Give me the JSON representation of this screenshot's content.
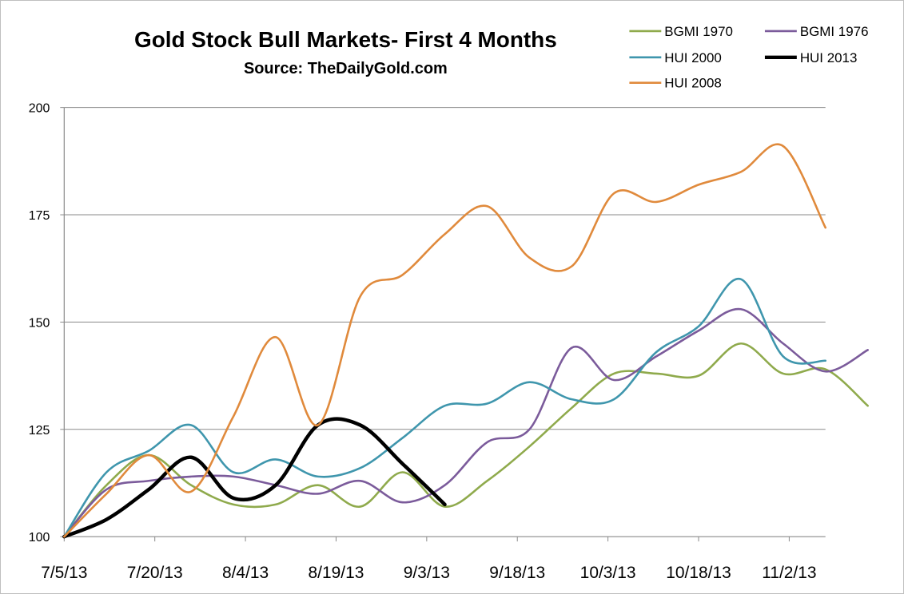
{
  "chart_data": {
    "type": "line",
    "title": "Gold Stock Bull Markets- First 4 Months",
    "subtitle": "Source: TheDailyGold.com",
    "xlabel": "",
    "ylabel": "",
    "ylim": [
      100,
      200
    ],
    "yticks": [
      100,
      125,
      150,
      175,
      200
    ],
    "xticks": [
      "7/5/13",
      "7/20/13",
      "8/4/13",
      "8/19/13",
      "9/3/13",
      "9/18/13",
      "10/3/13",
      "10/18/13",
      "11/2/13"
    ],
    "x_range": [
      "7/5/13",
      "11/8/13"
    ],
    "grid": "horizontal",
    "legend_position": "top-right",
    "series": [
      {
        "name": "BGMI 1970",
        "color": "#8faa4c",
        "points": [
          [
            "7/5/13",
            100
          ],
          [
            "7/12/13",
            112
          ],
          [
            "7/19/13",
            119
          ],
          [
            "7/26/13",
            112
          ],
          [
            "8/2/13",
            107.5
          ],
          [
            "8/9/13",
            107.5
          ],
          [
            "8/16/13",
            112
          ],
          [
            "8/23/13",
            107
          ],
          [
            "8/30/13",
            115
          ],
          [
            "9/6/13",
            107
          ],
          [
            "9/13/13",
            113
          ],
          [
            "9/20/13",
            121
          ],
          [
            "9/27/13",
            130
          ],
          [
            "10/4/13",
            138
          ],
          [
            "10/11/13",
            138
          ],
          [
            "10/18/13",
            137.5
          ],
          [
            "10/25/13",
            145
          ],
          [
            "11/1/13",
            138
          ],
          [
            "11/8/13",
            139
          ],
          [
            "11/15/13",
            130.5
          ]
        ]
      },
      {
        "name": "BGMI 1976",
        "color": "#7b5b9b",
        "points": [
          [
            "7/5/13",
            100
          ],
          [
            "7/12/13",
            111
          ],
          [
            "7/19/13",
            113
          ],
          [
            "7/26/13",
            114
          ],
          [
            "8/2/13",
            114
          ],
          [
            "8/9/13",
            112
          ],
          [
            "8/16/13",
            110
          ],
          [
            "8/23/13",
            113
          ],
          [
            "8/30/13",
            108
          ],
          [
            "9/6/13",
            112
          ],
          [
            "9/13/13",
            122
          ],
          [
            "9/20/13",
            125
          ],
          [
            "9/27/13",
            144
          ],
          [
            "10/4/13",
            136.5
          ],
          [
            "10/11/13",
            142
          ],
          [
            "10/18/13",
            148
          ],
          [
            "10/25/13",
            153
          ],
          [
            "11/1/13",
            145
          ],
          [
            "11/8/13",
            138.5
          ],
          [
            "11/15/13",
            143.5
          ]
        ]
      },
      {
        "name": "HUI 2000",
        "color": "#3f96ad",
        "points": [
          [
            "7/5/13",
            100
          ],
          [
            "7/12/13",
            115
          ],
          [
            "7/19/13",
            120
          ],
          [
            "7/26/13",
            126
          ],
          [
            "8/2/13",
            115
          ],
          [
            "8/9/13",
            118
          ],
          [
            "8/16/13",
            114
          ],
          [
            "8/23/13",
            116
          ],
          [
            "8/30/13",
            123
          ],
          [
            "9/6/13",
            130.5
          ],
          [
            "9/13/13",
            131
          ],
          [
            "9/20/13",
            136
          ],
          [
            "9/27/13",
            132
          ],
          [
            "10/4/13",
            132
          ],
          [
            "10/11/13",
            143
          ],
          [
            "10/18/13",
            149
          ],
          [
            "10/25/13",
            160
          ],
          [
            "11/1/13",
            142
          ],
          [
            "11/8/13",
            141
          ]
        ]
      },
      {
        "name": "HUI 2013",
        "color": "#000000",
        "points": [
          [
            "7/5/13",
            100
          ],
          [
            "7/12/13",
            104
          ],
          [
            "7/19/13",
            111
          ],
          [
            "7/26/13",
            118.5
          ],
          [
            "8/2/13",
            109
          ],
          [
            "8/9/13",
            112
          ],
          [
            "8/16/13",
            126
          ],
          [
            "8/23/13",
            126
          ],
          [
            "8/30/13",
            117
          ],
          [
            "9/6/13",
            107.5
          ]
        ]
      },
      {
        "name": "HUI 2008",
        "color": "#e08a3c",
        "points": [
          [
            "7/5/13",
            100
          ],
          [
            "7/12/13",
            110
          ],
          [
            "7/19/13",
            119
          ],
          [
            "7/26/13",
            110.5
          ],
          [
            "8/2/13",
            128
          ],
          [
            "8/9/13",
            146.5
          ],
          [
            "8/16/13",
            126
          ],
          [
            "8/23/13",
            156
          ],
          [
            "8/30/13",
            161
          ],
          [
            "9/6/13",
            170.5
          ],
          [
            "9/13/13",
            177
          ],
          [
            "9/20/13",
            165
          ],
          [
            "9/27/13",
            163
          ],
          [
            "10/4/13",
            180
          ],
          [
            "10/11/13",
            178
          ],
          [
            "10/18/13",
            182
          ],
          [
            "10/25/13",
            185
          ],
          [
            "11/1/13",
            191
          ],
          [
            "11/8/13",
            172
          ]
        ]
      }
    ]
  }
}
